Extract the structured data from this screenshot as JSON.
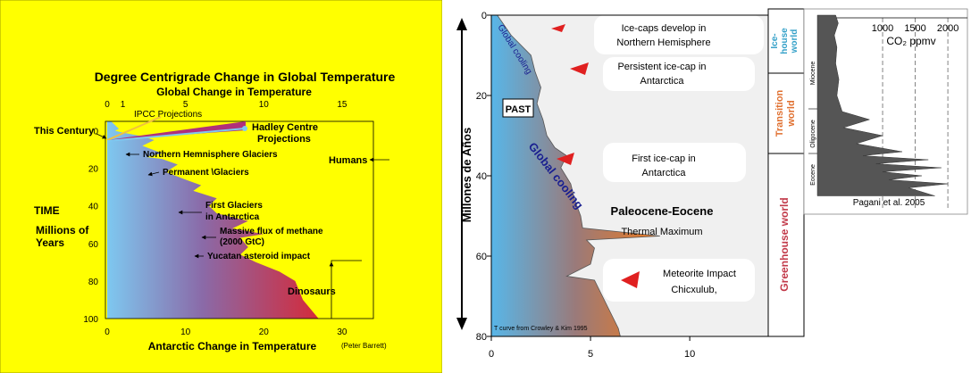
{
  "chart_data": [
    {
      "type": "area",
      "title": "Degree Centrigrade Change in Global Temperature",
      "subtitle": "Global Change in Temperature",
      "xlabel_top": "Global Change in Temperature",
      "xlabel_bottom": "Antarctic Change in Temperature",
      "credit": "(Peter Barrett)",
      "ylabel": [
        "TIME",
        "Millions of",
        "Years"
      ],
      "ylim": [
        100,
        -5
      ],
      "xlim_top": [
        0,
        17
      ],
      "xlim_bottom": [
        0,
        34
      ],
      "top_ticks": [
        "0",
        "1",
        "5",
        "10",
        "15"
      ],
      "bottom_ticks": [
        "0",
        "10",
        "20",
        "30"
      ],
      "y_ticks": [
        "0",
        "20",
        "40",
        "60",
        "80",
        "100"
      ],
      "series": [
        {
          "antarctic_temperature_by_age": [
            [
              -5,
              0.5
            ],
            [
              -1,
              1.5
            ],
            [
              0,
              1.0
            ],
            [
              1,
              2.0
            ],
            [
              3,
              4.5
            ],
            [
              5,
              6.0
            ],
            [
              8,
              4.5
            ],
            [
              12,
              7.0
            ],
            [
              14,
              5.0
            ],
            [
              15,
              7.0
            ],
            [
              18,
              9.0
            ],
            [
              22,
              7.5
            ],
            [
              26,
              10.0
            ],
            [
              29,
              12.0
            ],
            [
              32,
              11.0
            ],
            [
              36,
              14.0
            ],
            [
              40,
              13.0
            ],
            [
              44,
              14.0
            ],
            [
              48,
              18.0
            ],
            [
              52,
              16.0
            ],
            [
              55,
              20.0
            ],
            [
              57,
              17.0
            ],
            [
              62,
              18.0
            ],
            [
              66,
              17.0
            ],
            [
              70,
              19.0
            ],
            [
              75,
              22.0
            ],
            [
              80,
              24.0
            ],
            [
              90,
              25.0
            ],
            [
              100,
              27.0
            ]
          ]
        }
      ],
      "annotations": {
        "this_century": "This Century",
        "ipcc": "IPCC Projections",
        "hadley": [
          "Hadley Centre",
          "Projections"
        ],
        "nh_glaciers": "Northern Hemnisphere Glaciers",
        "permanent": "Permanent \\Glaciers",
        "first_glaciers": [
          "First Glaciers",
          "in Antarctica"
        ],
        "methane": [
          "Massive flux of methane",
          "(2000 GtC)"
        ],
        "asteroid": "Yucatan asteroid impact",
        "humans": "Humans",
        "dinosaurs": "Dinosaurs"
      },
      "colors": {
        "background": "#ffff00",
        "cool": "#7ec8f0",
        "warm": "#d42a3a"
      }
    },
    {
      "type": "area",
      "xlabel": "",
      "ylabel": "Millones de Años",
      "ylim": [
        80,
        0
      ],
      "xlim": [
        0,
        14
      ],
      "x_ticks": [
        "0",
        "5",
        "10"
      ],
      "y_ticks": [
        "0",
        "20",
        "40",
        "60",
        "80"
      ],
      "series": [
        {
          "temperature_by_age": [
            [
              0,
              0.3
            ],
            [
              5,
              1.0
            ],
            [
              10,
              2.0
            ],
            [
              14,
              2.2
            ],
            [
              18,
              2.5
            ],
            [
              22,
              2.3
            ],
            [
              26,
              2.6
            ],
            [
              30,
              2.8
            ],
            [
              33,
              3.2
            ],
            [
              35,
              3.8
            ],
            [
              38,
              3.5
            ],
            [
              42,
              4.0
            ],
            [
              46,
              4.2
            ],
            [
              50,
              4.5
            ],
            [
              53,
              4.6
            ],
            [
              55,
              8.5
            ],
            [
              56,
              4.8
            ],
            [
              58,
              5.2
            ],
            [
              62,
              5.0
            ],
            [
              65,
              3.8
            ],
            [
              66,
              5.2
            ],
            [
              70,
              5.6
            ],
            [
              74,
              6.0
            ],
            [
              78,
              6.4
            ],
            [
              80,
              6.5
            ]
          ]
        }
      ],
      "annotations": {
        "global_cooling_1": "Global cooling",
        "global_cooling_2": "Global cooling",
        "past": "PAST",
        "ice_caps_nh": [
          "Ice-caps develop in",
          "Northern Hemisphere"
        ],
        "persistent": [
          "Persistent ice-cap in",
          "Antarctica"
        ],
        "first_ice_cap": [
          "First ice-cap in",
          "Antarctica"
        ],
        "paleocene": "Paleocene-Eocene",
        "thermal": "Thermal Maximum",
        "meteorite": [
          "Meteorite Impact",
          "Chicxulub,"
        ],
        "source": "T curve from Crowley & Kim 1995"
      },
      "worlds": [
        {
          "label": [
            "Ice-",
            "house",
            "world"
          ],
          "color": "#33a0c8"
        },
        {
          "label": [
            "Transition",
            "world"
          ],
          "color": "#e07030"
        },
        {
          "label": [
            "Greenhouse world"
          ],
          "color": "#c23a4a"
        }
      ],
      "colors": {
        "cool": "#58b6e8",
        "warm": "#ee7a1e",
        "arrow": "#e02020"
      }
    },
    {
      "type": "area",
      "xlabel": "CO₂ ppmv",
      "x_ticks": [
        "1000",
        "1500",
        "2000"
      ],
      "xlim": [
        0,
        2300
      ],
      "epochs": [
        "Miocene",
        "Oligocene",
        "Eocene"
      ],
      "credit": "Pagani et al. 2005",
      "series": [
        {
          "co2_by_age": [
            [
              0,
              280
            ],
            [
              2,
              320
            ],
            [
              5,
              260
            ],
            [
              8,
              300
            ],
            [
              12,
              280
            ],
            [
              16,
              330
            ],
            [
              20,
              300
            ],
            [
              24,
              380
            ],
            [
              26,
              800
            ],
            [
              28,
              400
            ],
            [
              30,
              1000
            ],
            [
              32,
              600
            ],
            [
              34,
              1300
            ],
            [
              35,
              700
            ],
            [
              36,
              1700
            ],
            [
              37,
              900
            ],
            [
              38,
              1900
            ],
            [
              39,
              1000
            ],
            [
              40,
              1600
            ],
            [
              41,
              1100
            ],
            [
              42,
              2000
            ],
            [
              43,
              1400
            ],
            [
              45,
              1800
            ]
          ]
        }
      ],
      "colors": {
        "fill": "#555555"
      }
    }
  ]
}
